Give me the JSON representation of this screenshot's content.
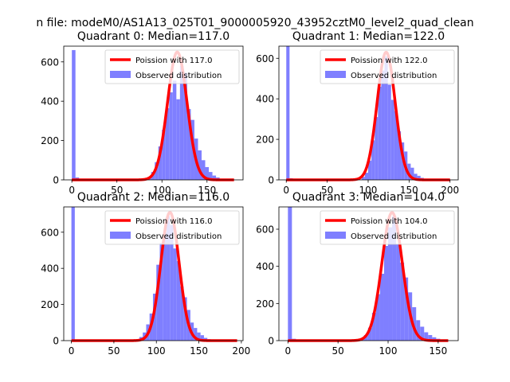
{
  "figure": {
    "suptitle": "n file: modeM0/AS1A13_025T01_9000005920_43952cztM0_level2_quad_clean"
  },
  "colors": {
    "hist": "#7f7fff",
    "poisson": "#ff0000",
    "axes": "#000000"
  },
  "chart_data": [
    {
      "type": "histogram",
      "title": "Quadrant 0: Median=117.0",
      "xlim": [
        -9,
        190
      ],
      "ylim": [
        0,
        680
      ],
      "xticks": [
        0,
        50,
        100,
        150
      ],
      "yticks": [
        0,
        200,
        400,
        600
      ],
      "grid": false,
      "legend_position": "top-right",
      "legend": [
        "Poission with 117.0",
        "Observed distribution"
      ],
      "hist_bin_width": 4,
      "hist_bins": [
        {
          "x0": 0,
          "y": 660
        },
        {
          "x0": 4,
          "y": 12
        },
        {
          "x0": 84,
          "y": 15
        },
        {
          "x0": 88,
          "y": 40
        },
        {
          "x0": 92,
          "y": 90
        },
        {
          "x0": 96,
          "y": 170
        },
        {
          "x0": 100,
          "y": 255
        },
        {
          "x0": 104,
          "y": 365
        },
        {
          "x0": 108,
          "y": 445
        },
        {
          "x0": 112,
          "y": 505
        },
        {
          "x0": 116,
          "y": 410
        },
        {
          "x0": 120,
          "y": 580
        },
        {
          "x0": 124,
          "y": 545
        },
        {
          "x0": 128,
          "y": 360
        },
        {
          "x0": 132,
          "y": 305
        },
        {
          "x0": 136,
          "y": 210
        },
        {
          "x0": 140,
          "y": 150
        },
        {
          "x0": 144,
          "y": 100
        },
        {
          "x0": 148,
          "y": 65
        },
        {
          "x0": 152,
          "y": 40
        },
        {
          "x0": 156,
          "y": 22
        },
        {
          "x0": 160,
          "y": 12
        }
      ],
      "poisson": {
        "label": "Poission with 117.0",
        "mean": 117.0,
        "peak": 650,
        "x_range": [
          0,
          180
        ]
      }
    },
    {
      "type": "histogram",
      "title": "Quadrant 1: Median=122.0",
      "xlim": [
        -9,
        210
      ],
      "ylim": [
        0,
        660
      ],
      "xticks": [
        0,
        50,
        100,
        150,
        200
      ],
      "yticks": [
        0,
        200,
        400,
        600
      ],
      "grid": false,
      "legend_position": "top-right",
      "legend": [
        "Poission with 122.0",
        "Observed distribution"
      ],
      "hist_bin_width": 4,
      "hist_bins": [
        {
          "x0": 0,
          "y": 660
        },
        {
          "x0": 4,
          "y": 8
        },
        {
          "x0": 92,
          "y": 15
        },
        {
          "x0": 96,
          "y": 35
        },
        {
          "x0": 100,
          "y": 95
        },
        {
          "x0": 104,
          "y": 195
        },
        {
          "x0": 108,
          "y": 310
        },
        {
          "x0": 112,
          "y": 460
        },
        {
          "x0": 116,
          "y": 540
        },
        {
          "x0": 120,
          "y": 610
        },
        {
          "x0": 124,
          "y": 470
        },
        {
          "x0": 128,
          "y": 395
        },
        {
          "x0": 132,
          "y": 340
        },
        {
          "x0": 136,
          "y": 240
        },
        {
          "x0": 140,
          "y": 185
        },
        {
          "x0": 144,
          "y": 140
        },
        {
          "x0": 148,
          "y": 80
        },
        {
          "x0": 152,
          "y": 60
        },
        {
          "x0": 156,
          "y": 30
        },
        {
          "x0": 160,
          "y": 20
        },
        {
          "x0": 164,
          "y": 10
        }
      ],
      "poisson": {
        "label": "Poission with 122.0",
        "mean": 122.0,
        "peak": 630,
        "x_range": [
          0,
          200
        ]
      }
    },
    {
      "type": "histogram",
      "title": "Quadrant 2: Median=116.0",
      "xlim": [
        -9,
        202
      ],
      "ylim": [
        0,
        740
      ],
      "xticks": [
        0,
        50,
        100,
        150,
        200
      ],
      "yticks": [
        0,
        200,
        400,
        600
      ],
      "grid": false,
      "legend_position": "top-right",
      "legend": [
        "Poission with 116.0",
        "Observed distribution"
      ],
      "hist_bin_width": 4,
      "hist_bins": [
        {
          "x0": 0,
          "y": 740
        },
        {
          "x0": 4,
          "y": 6
        },
        {
          "x0": 76,
          "y": 8
        },
        {
          "x0": 80,
          "y": 20
        },
        {
          "x0": 84,
          "y": 45
        },
        {
          "x0": 88,
          "y": 90
        },
        {
          "x0": 92,
          "y": 150
        },
        {
          "x0": 96,
          "y": 260
        },
        {
          "x0": 100,
          "y": 420
        },
        {
          "x0": 104,
          "y": 540
        },
        {
          "x0": 108,
          "y": 600
        },
        {
          "x0": 112,
          "y": 690
        },
        {
          "x0": 116,
          "y": 640
        },
        {
          "x0": 120,
          "y": 510
        },
        {
          "x0": 124,
          "y": 440
        },
        {
          "x0": 128,
          "y": 300
        },
        {
          "x0": 132,
          "y": 240
        },
        {
          "x0": 136,
          "y": 170
        },
        {
          "x0": 140,
          "y": 100
        },
        {
          "x0": 144,
          "y": 70
        },
        {
          "x0": 148,
          "y": 45
        },
        {
          "x0": 152,
          "y": 30
        },
        {
          "x0": 156,
          "y": 15
        },
        {
          "x0": 160,
          "y": 8
        }
      ],
      "poisson": {
        "label": "Poission with 116.0",
        "mean": 116.0,
        "peak": 710,
        "x_range": [
          0,
          195
        ]
      }
    },
    {
      "type": "histogram",
      "title": "Quadrant 3: Median=104.0",
      "xlim": [
        -9,
        170
      ],
      "ylim": [
        0,
        720
      ],
      "xticks": [
        0,
        50,
        100,
        150
      ],
      "yticks": [
        0,
        200,
        400,
        600
      ],
      "grid": false,
      "legend_position": "top-right",
      "legend": [
        "Poission with 104.0",
        "Observed distribution"
      ],
      "hist_bin_width": 4,
      "hist_bins": [
        {
          "x0": 0,
          "y": 720
        },
        {
          "x0": 4,
          "y": 10
        },
        {
          "x0": 72,
          "y": 10
        },
        {
          "x0": 76,
          "y": 30
        },
        {
          "x0": 80,
          "y": 70
        },
        {
          "x0": 84,
          "y": 150
        },
        {
          "x0": 88,
          "y": 250
        },
        {
          "x0": 92,
          "y": 360
        },
        {
          "x0": 96,
          "y": 510
        },
        {
          "x0": 100,
          "y": 610
        },
        {
          "x0": 104,
          "y": 670
        },
        {
          "x0": 108,
          "y": 520
        },
        {
          "x0": 112,
          "y": 420
        },
        {
          "x0": 116,
          "y": 340
        },
        {
          "x0": 120,
          "y": 260
        },
        {
          "x0": 124,
          "y": 180
        },
        {
          "x0": 128,
          "y": 110
        },
        {
          "x0": 132,
          "y": 75
        },
        {
          "x0": 136,
          "y": 45
        },
        {
          "x0": 140,
          "y": 30
        },
        {
          "x0": 144,
          "y": 18
        },
        {
          "x0": 148,
          "y": 10
        }
      ],
      "poisson": {
        "label": "Poission with 104.0",
        "mean": 104.0,
        "peak": 690,
        "x_range": [
          0,
          160
        ]
      }
    }
  ]
}
